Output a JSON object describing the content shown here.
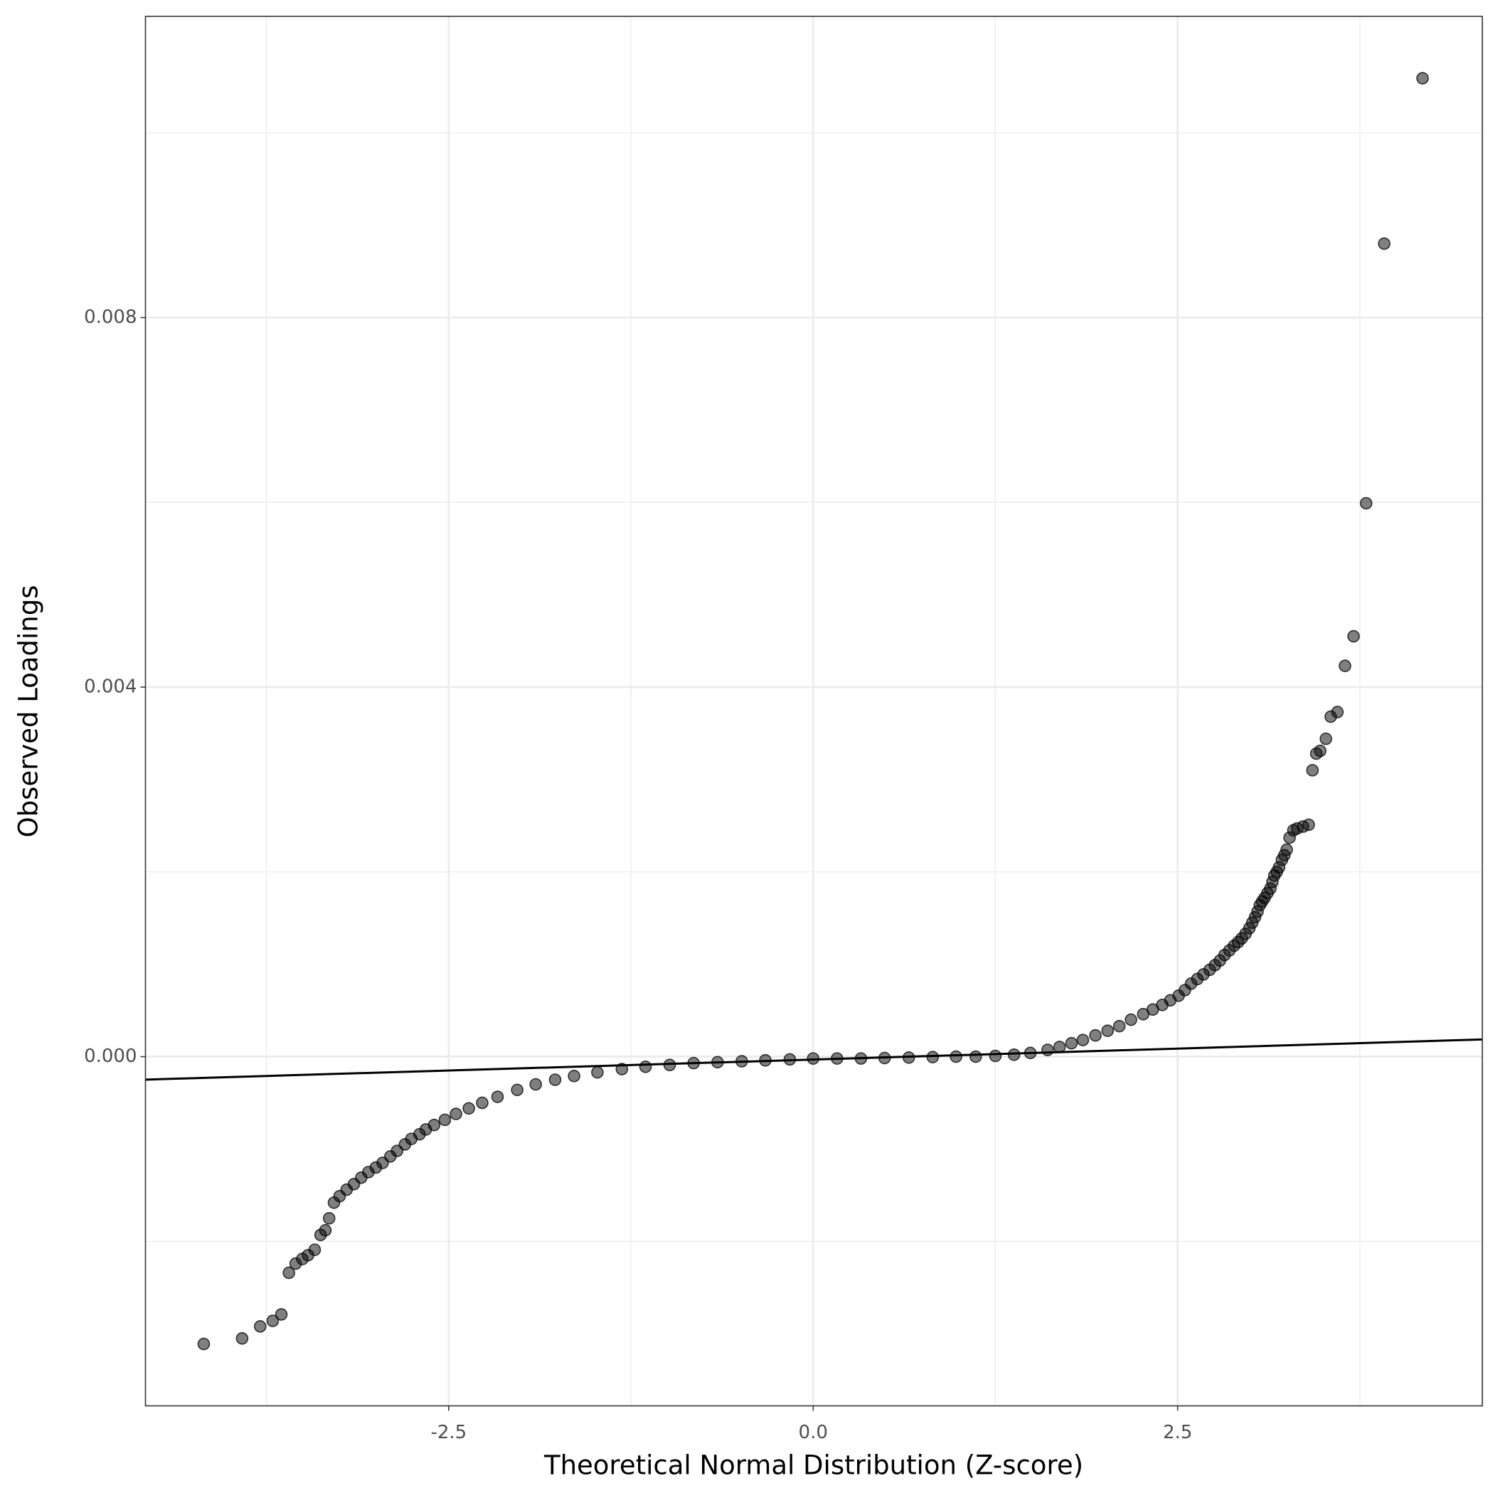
{
  "chart_data": {
    "type": "scatter",
    "xlabel": "Theoretical Normal Distribution (Z-score)",
    "ylabel": "Observed Loadings",
    "x": [
      -4.18,
      -3.917,
      -3.793,
      -3.707,
      -3.648,
      -3.596,
      -3.55,
      -3.504,
      -3.465,
      -3.419,
      -3.379,
      -3.346,
      -3.32,
      -3.287,
      -3.248,
      -3.2,
      -3.15,
      -3.1,
      -3.051,
      -3.0,
      -2.953,
      -2.9,
      -2.854,
      -2.8,
      -2.756,
      -2.7,
      -2.657,
      -2.6,
      -2.526,
      -2.45,
      -2.362,
      -2.27,
      -2.165,
      -2.03,
      -1.903,
      -1.77,
      -1.64,
      -1.48,
      -1.312,
      -1.15,
      -0.984,
      -0.82,
      -0.656,
      -0.49,
      -0.328,
      -0.16,
      0,
      0.164,
      0.328,
      0.49,
      0.656,
      0.82,
      0.98,
      1.115,
      1.25,
      1.378,
      1.49,
      1.608,
      1.69,
      1.772,
      1.85,
      1.936,
      2.02,
      2.1,
      2.18,
      2.264,
      2.33,
      2.395,
      2.45,
      2.507,
      2.55,
      2.592,
      2.635,
      2.677,
      2.72,
      2.756,
      2.79,
      2.822,
      2.855,
      2.887,
      2.915,
      2.94,
      2.966,
      2.992,
      3.012,
      3.031,
      3.048,
      3.064,
      3.08,
      3.097,
      3.116,
      3.136,
      3.15,
      3.163,
      3.18,
      3.196,
      3.215,
      3.232,
      3.248,
      3.268,
      3.294,
      3.32,
      3.36,
      3.399,
      3.425,
      3.451,
      3.478,
      3.517,
      3.55,
      3.596,
      3.648,
      3.707,
      3.793,
      3.917,
      4.18
    ],
    "y": [
      -0.00311,
      -0.00305,
      -0.00292,
      -0.00286,
      -0.00279,
      -0.00234,
      -0.00224,
      -0.00219,
      -0.00215,
      -0.00209,
      -0.00193,
      -0.00188,
      -0.00175,
      -0.00158,
      -0.00151,
      -0.00144,
      -0.00138,
      -0.00131,
      -0.00125,
      -0.0012,
      -0.00115,
      -0.00108,
      -0.00102,
      -0.00095,
      -0.00089,
      -0.00084,
      -0.000788,
      -0.00074,
      -0.000684,
      -0.00062,
      -0.00056,
      -0.0005,
      -0.000435,
      -0.00036,
      -0.0003,
      -0.00025,
      -0.00021,
      -0.00017,
      -0.000135,
      -0.00011,
      -9e-05,
      -7e-05,
      -6e-05,
      -5e-05,
      -4e-05,
      -3e-05,
      -2e-05,
      -2e-05,
      -2e-05,
      -1.5e-05,
      -1e-05,
      -5e-06,
      0.0,
      0.0,
      8e-06,
      2.07e-05,
      4e-05,
      7.25e-05,
      0.000105,
      0.000145,
      0.00018,
      0.00023,
      0.00028,
      0.00033,
      0.0004,
      0.00046,
      0.00051,
      0.00056,
      0.00061,
      0.00066,
      0.00072,
      0.00079,
      0.00084,
      0.00089,
      0.00094,
      0.00099,
      0.00104,
      0.0011,
      0.00115,
      0.0012,
      0.00124,
      0.00128,
      0.00133,
      0.00139,
      0.00145,
      0.00151,
      0.00157,
      0.00164,
      0.00168,
      0.00172,
      0.00177,
      0.00182,
      0.00189,
      0.00196,
      0.002,
      0.00205,
      0.00213,
      0.00218,
      0.00224,
      0.00237,
      0.00245,
      0.00247,
      0.00249,
      0.00251,
      0.0031,
      0.00328,
      0.00331,
      0.00344,
      0.00368,
      0.00373,
      0.00423,
      0.00455,
      0.00599,
      0.0088,
      0.01059
    ],
    "reference_line": {
      "slope": 4.74e-05,
      "intercept": -3.15e-05
    },
    "xlim": [
      -4.58,
      4.59
    ],
    "ylim": [
      -0.00378,
      0.01126
    ],
    "xticks": [
      -2.5,
      {
        "value": 0,
        "label": "0.0"
      },
      2.5
    ],
    "yticks": [
      {
        "value": 0,
        "label": "0.000"
      },
      {
        "value": 0.004,
        "label": "0.004"
      },
      {
        "value": 0.008,
        "label": "0.008"
      }
    ],
    "minor_xticks": [
      -3.75,
      -1.25,
      1.25,
      3.75
    ],
    "minor_yticks": [
      -0.002,
      0.002,
      0.006,
      0.01
    ],
    "grid": true,
    "color": "#000000"
  }
}
